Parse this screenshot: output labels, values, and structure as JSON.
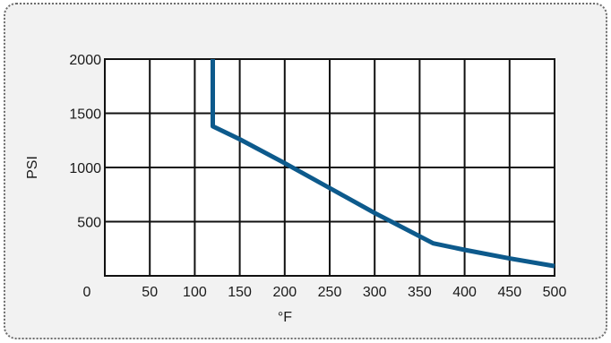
{
  "chart_data": {
    "type": "line",
    "title": "",
    "xlabel": "°F",
    "ylabel": "PSI",
    "xlim": [
      0,
      500
    ],
    "ylim": [
      0,
      2000
    ],
    "x_ticks": [
      "0",
      "50",
      "100",
      "150",
      "200",
      "250",
      "300",
      "350",
      "400",
      "450",
      "500"
    ],
    "y_ticks": [
      "500",
      "1000",
      "1500",
      "2000"
    ],
    "grid": true,
    "legend": "none",
    "colors": {
      "line": "#0d5a8c",
      "grid": "#111111",
      "plot_bg": "#ffffff",
      "frame_bg": "#f2f2f2"
    },
    "series": [
      {
        "x": [
          120,
          120,
          150,
          200,
          250,
          300,
          365,
          400,
          450,
          500
        ],
        "y": [
          2000,
          1380,
          1260,
          1040,
          810,
          580,
          300,
          240,
          160,
          90
        ]
      }
    ]
  }
}
